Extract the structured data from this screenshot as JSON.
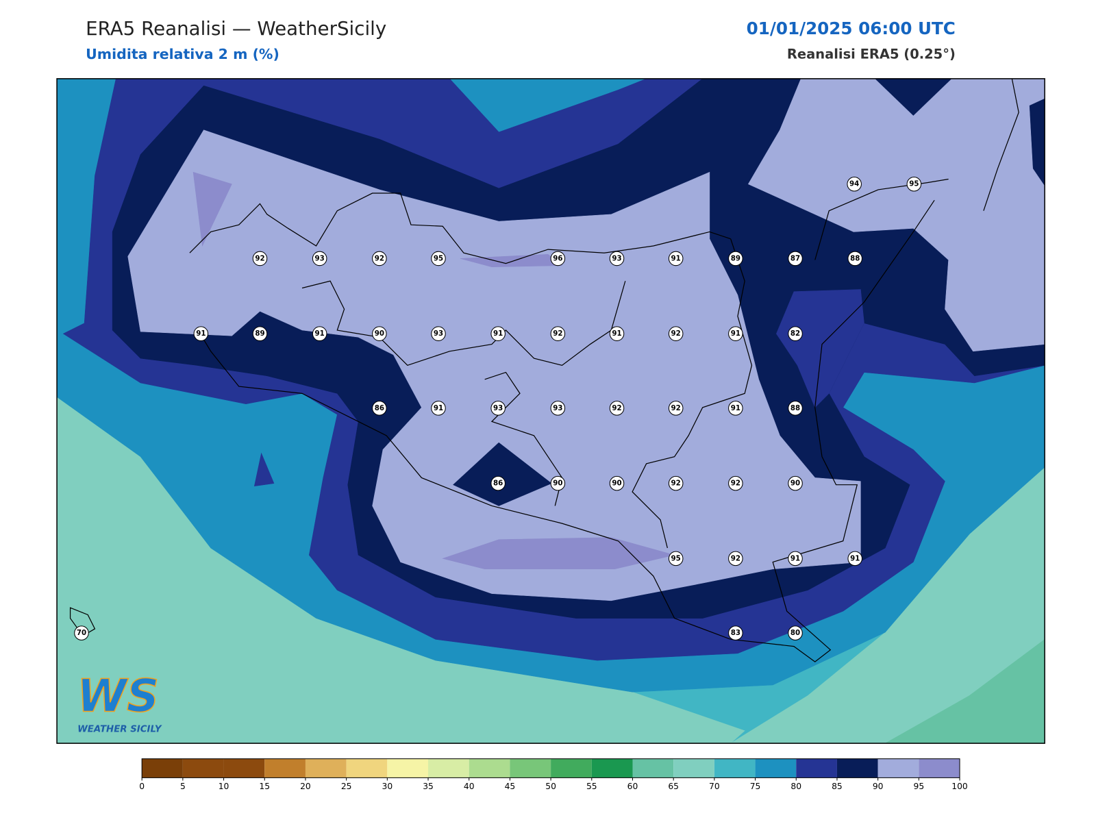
{
  "header": {
    "title": "ERA5 Reanalisi — WeatherSicily",
    "subtitle": "Umidita relativa 2 m (%)",
    "datetime": "01/01/2025 06:00 UTC",
    "source": "Reanalisi ERA5 (0.25°)"
  },
  "stations": [
    92,
    93,
    92,
    95,
    96,
    93,
    91,
    89,
    87,
    88,
    94,
    95,
    91,
    89,
    91,
    90,
    93,
    91,
    92,
    91,
    92,
    91,
    82,
    86,
    91,
    93,
    93,
    92,
    92,
    91,
    88,
    86,
    90,
    90,
    92,
    92,
    90,
    95,
    92,
    91,
    91,
    70,
    83,
    80
  ],
  "colorbar": {
    "ticks": [
      0,
      5,
      10,
      15,
      20,
      25,
      30,
      35,
      40,
      45,
      50,
      55,
      60,
      65,
      70,
      75,
      80,
      85,
      90,
      95,
      100
    ],
    "colors": [
      "#7a3f08",
      "#8c4a0e",
      "#8c4a0e",
      "#c17f2c",
      "#dfb05a",
      "#f0d57e",
      "#f6f4a6",
      "#d8eda5",
      "#acdc8f",
      "#78c679",
      "#41ab5d",
      "#1a9850",
      "#66c2a4",
      "#80cfbf",
      "#41b6c4",
      "#1d91c0",
      "#253494",
      "#081d58",
      "#a2acdc",
      "#8c8ccc"
    ]
  },
  "logo": {
    "mark": "WS",
    "caption": "WEATHER SICILY"
  }
}
